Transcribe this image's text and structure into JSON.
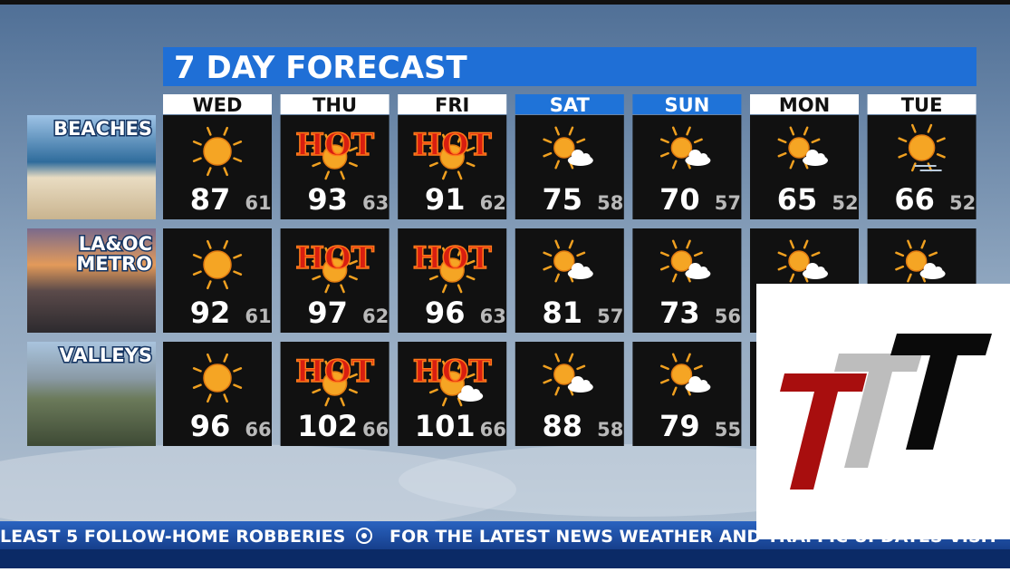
{
  "title": "7 DAY FORECAST",
  "days": [
    {
      "label": "WED",
      "header": "#ffffff"
    },
    {
      "label": "THU",
      "header": "#ffffff"
    },
    {
      "label": "FRI",
      "header": "#ffffff"
    },
    {
      "label": "SAT",
      "header": "#1f73d8"
    },
    {
      "label": "SUN",
      "header": "#1f73d8"
    },
    {
      "label": "MON",
      "header": "#ffffff"
    },
    {
      "label": "TUE",
      "header": "#ffffff"
    }
  ],
  "regions": [
    {
      "name": [
        "BEACHES"
      ],
      "cells": [
        {
          "icon": "sun",
          "high": 87,
          "low": 61
        },
        {
          "icon": "hot",
          "badge": "HOT",
          "high": 93,
          "low": 63
        },
        {
          "icon": "hot",
          "badge": "HOT",
          "high": 91,
          "low": 62
        },
        {
          "icon": "partly",
          "high": 75,
          "low": 58
        },
        {
          "icon": "partly",
          "high": 70,
          "low": 57
        },
        {
          "icon": "partly",
          "high": 65,
          "low": 52
        },
        {
          "icon": "haze",
          "high": 66,
          "low": 52
        }
      ]
    },
    {
      "name": [
        "LA&OC",
        "METRO"
      ],
      "cells": [
        {
          "icon": "sun",
          "high": 92,
          "low": 61
        },
        {
          "icon": "hot",
          "badge": "HOT",
          "high": 97,
          "low": 62
        },
        {
          "icon": "hot",
          "badge": "HOT",
          "high": 96,
          "low": 63
        },
        {
          "icon": "partly",
          "high": 81,
          "low": 57
        },
        {
          "icon": "partly",
          "high": 73,
          "low": 56
        },
        {
          "icon": "partly",
          "high": null,
          "low": null
        },
        {
          "icon": "partly",
          "high": null,
          "low": null
        }
      ]
    },
    {
      "name": [
        "VALLEYS"
      ],
      "cells": [
        {
          "icon": "sun",
          "high": 96,
          "low": 66
        },
        {
          "icon": "hot",
          "badge": "HOT",
          "high": 102,
          "low": 66
        },
        {
          "icon": "hot-partly",
          "badge": "HOT",
          "high": 101,
          "low": 66
        },
        {
          "icon": "partly",
          "high": 88,
          "low": 58
        },
        {
          "icon": "partly",
          "high": 79,
          "low": 55
        },
        {
          "icon": null,
          "high": null,
          "low": null
        },
        {
          "icon": null,
          "high": null,
          "low": null
        }
      ]
    }
  ],
  "ticker": [
    "LEAST 5 FOLLOW-HOME ROBBERIES",
    "FOR THE LATEST NEWS WEATHER AND TRAFFIC UPDATES VISIT"
  ]
}
